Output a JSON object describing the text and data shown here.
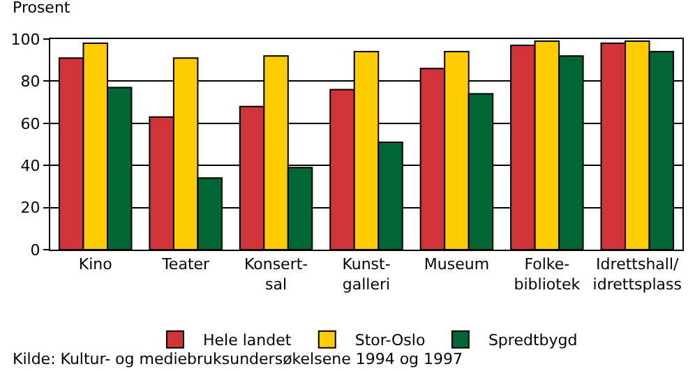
{
  "chart_data": {
    "type": "bar",
    "ylabel": "Prosent",
    "categories": [
      "Kino",
      "Teater",
      "Konsert-\nsal",
      "Kunst-\ngalleri",
      "Museum",
      "Folke-\nbibliotek",
      "Idrettshall/\nidrettsplass"
    ],
    "series": [
      {
        "name": "Hele landet",
        "color": "#d13438",
        "values": [
          91,
          63,
          68,
          76,
          86,
          97,
          98
        ]
      },
      {
        "name": "Stor-Oslo",
        "color": "#ffcc00",
        "values": [
          98,
          91,
          92,
          94,
          94,
          99,
          99
        ]
      },
      {
        "name": "Spredtbygd",
        "color": "#006633",
        "values": [
          77,
          34,
          39,
          51,
          74,
          92,
          94
        ]
      }
    ],
    "ylim": [
      0,
      100
    ],
    "yticks": [
      0,
      20,
      40,
      60,
      80,
      100
    ],
    "grid": "y",
    "legend": "bottom",
    "annotations": [
      "Kilde: Kultur- og mediebruksundersøkelsene 1994 og 1997"
    ]
  }
}
